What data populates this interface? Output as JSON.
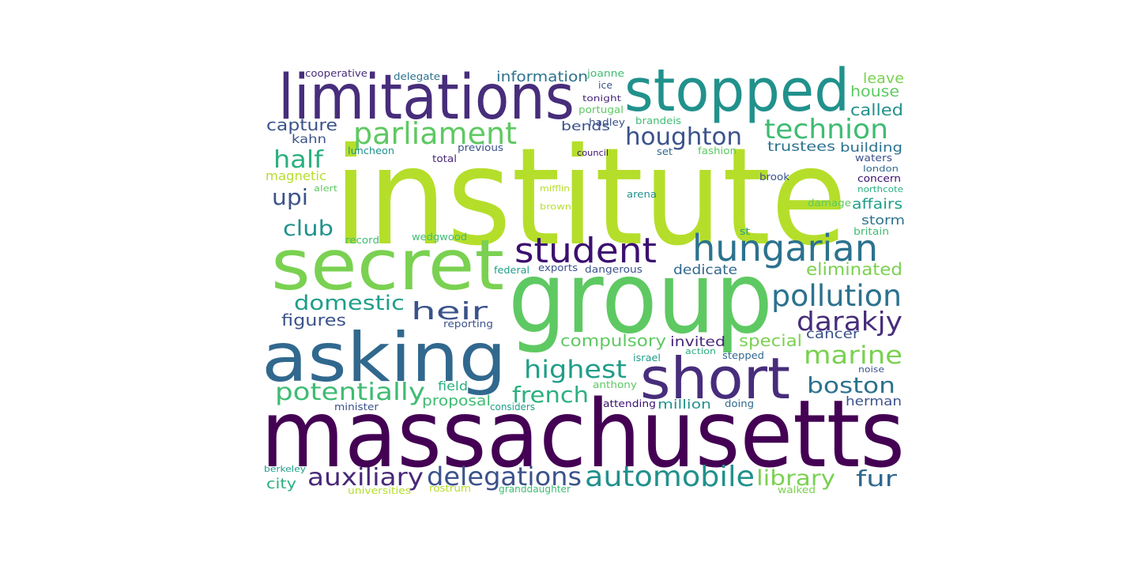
{
  "words": [
    {
      "text": "institute",
      "color": "#b5de2b"
    },
    {
      "text": "massachusetts",
      "color": "#440154"
    },
    {
      "text": "group",
      "color": "#5ec962"
    },
    {
      "text": "limitations",
      "color": "#472d7b"
    },
    {
      "text": "stopped",
      "color": "#21918c"
    },
    {
      "text": "asking",
      "color": "#31688e"
    },
    {
      "text": "secret",
      "color": "#7ad151"
    },
    {
      "text": "short",
      "color": "#472d7b"
    },
    {
      "text": "hungarian",
      "color": "#2c728e"
    },
    {
      "text": "student",
      "color": "#3b0f70"
    },
    {
      "text": "pollution",
      "color": "#2c728e"
    },
    {
      "text": "parliament",
      "color": "#5ec962"
    },
    {
      "text": "technion",
      "color": "#3fbc73"
    },
    {
      "text": "houghton",
      "color": "#3b528b"
    },
    {
      "text": "automobile",
      "color": "#21918c"
    },
    {
      "text": "delegations",
      "color": "#3b528b"
    },
    {
      "text": "auxiliary",
      "color": "#482878"
    },
    {
      "text": "darakjy",
      "color": "#472d7b"
    },
    {
      "text": "marine",
      "color": "#7ad151"
    },
    {
      "text": "boston",
      "color": "#2c728e"
    },
    {
      "text": "potentially",
      "color": "#3fbc73"
    },
    {
      "text": "highest",
      "color": "#1f9e89"
    },
    {
      "text": "french",
      "color": "#2ab07f"
    },
    {
      "text": "library",
      "color": "#7ad151"
    },
    {
      "text": "fur",
      "color": "#31688e"
    },
    {
      "text": "half",
      "color": "#2ab07f"
    },
    {
      "text": "heir",
      "color": "#3b528b"
    },
    {
      "text": "domestic",
      "color": "#1f9e89"
    },
    {
      "text": "upi",
      "color": "#3b528b"
    },
    {
      "text": "club",
      "color": "#21918c"
    },
    {
      "text": "capture",
      "color": "#3b528b"
    },
    {
      "text": "information",
      "color": "#2c728e"
    },
    {
      "text": "compulsory",
      "color": "#5ec962"
    },
    {
      "text": "eliminated",
      "color": "#7ad151"
    },
    {
      "text": "figures",
      "color": "#3b528b"
    },
    {
      "text": "special",
      "color": "#7ad151"
    },
    {
      "text": "invited",
      "color": "#482878"
    },
    {
      "text": "cancer",
      "color": "#3b528b"
    },
    {
      "text": "dedicate",
      "color": "#31688e"
    },
    {
      "text": "proposal",
      "color": "#3fbc73"
    },
    {
      "text": "million",
      "color": "#21918c"
    },
    {
      "text": "herman",
      "color": "#3b528b"
    },
    {
      "text": "city",
      "color": "#2ab07f"
    },
    {
      "text": "affairs",
      "color": "#1f9e89"
    },
    {
      "text": "storm",
      "color": "#2c728e"
    },
    {
      "text": "called",
      "color": "#21918c"
    },
    {
      "text": "house",
      "color": "#5ec962"
    },
    {
      "text": "leave",
      "color": "#7ad151"
    },
    {
      "text": "building",
      "color": "#2c728e"
    },
    {
      "text": "trustees",
      "color": "#2c728e"
    },
    {
      "text": "bends",
      "color": "#3b528b"
    },
    {
      "text": "field",
      "color": "#2ab07f"
    },
    {
      "text": "magnetic",
      "color": "#b5de2b"
    },
    {
      "text": "kahn",
      "color": "#3b528b"
    },
    {
      "text": "cooperative",
      "color": "#472d7b"
    },
    {
      "text": "delegate",
      "color": "#2c728e"
    },
    {
      "text": "joanne",
      "color": "#3fbc73"
    },
    {
      "text": "ice",
      "color": "#3b528b"
    },
    {
      "text": "tonight",
      "color": "#482878"
    },
    {
      "text": "portugal",
      "color": "#5ec962"
    },
    {
      "text": "hadley",
      "color": "#3b528b"
    },
    {
      "text": "brandeis",
      "color": "#3fbc73"
    },
    {
      "text": "luncheon",
      "color": "#21918c"
    },
    {
      "text": "previous",
      "color": "#3b528b"
    },
    {
      "text": "total",
      "color": "#482878"
    },
    {
      "text": "council",
      "color": "#3b0f70"
    },
    {
      "text": "set",
      "color": "#31688e"
    },
    {
      "text": "fashion",
      "color": "#5ec962"
    },
    {
      "text": "waters",
      "color": "#3b528b"
    },
    {
      "text": "london",
      "color": "#31688e"
    },
    {
      "text": "concern",
      "color": "#3b0f70"
    },
    {
      "text": "northcote",
      "color": "#2ab07f"
    },
    {
      "text": "brook",
      "color": "#3b528b"
    },
    {
      "text": "alert",
      "color": "#5ec962"
    },
    {
      "text": "mifflin",
      "color": "#b5de2b"
    },
    {
      "text": "arena",
      "color": "#21918c"
    },
    {
      "text": "brown",
      "color": "#b5de2b"
    },
    {
      "text": "damage",
      "color": "#5ec962"
    },
    {
      "text": "record",
      "color": "#3fbc73"
    },
    {
      "text": "wedgwood",
      "color": "#3fbc73"
    },
    {
      "text": "st",
      "color": "#1f9e89"
    },
    {
      "text": "britain",
      "color": "#3fbc73"
    },
    {
      "text": "federal",
      "color": "#1f9e89"
    },
    {
      "text": "exports",
      "color": "#3b528b"
    },
    {
      "text": "dangerous",
      "color": "#3b528b"
    },
    {
      "text": "reporting",
      "color": "#3b528b"
    },
    {
      "text": "action",
      "color": "#2ab07f"
    },
    {
      "text": "israel",
      "color": "#1f9e89"
    },
    {
      "text": "stepped",
      "color": "#31688e"
    },
    {
      "text": "noise",
      "color": "#3b528b"
    },
    {
      "text": "anthony",
      "color": "#5ec962"
    },
    {
      "text": "minister",
      "color": "#3b528b"
    },
    {
      "text": "considers",
      "color": "#1f9e89"
    },
    {
      "text": "attending",
      "color": "#3b0f70"
    },
    {
      "text": "doing",
      "color": "#31688e"
    },
    {
      "text": "berkeley",
      "color": "#1f9e89"
    },
    {
      "text": "universities",
      "color": "#b5de2b"
    },
    {
      "text": "rostrum",
      "color": "#b5de2b"
    },
    {
      "text": "granddaughter",
      "color": "#3fbc73"
    },
    {
      "text": "walked",
      "color": "#7ad151"
    }
  ]
}
